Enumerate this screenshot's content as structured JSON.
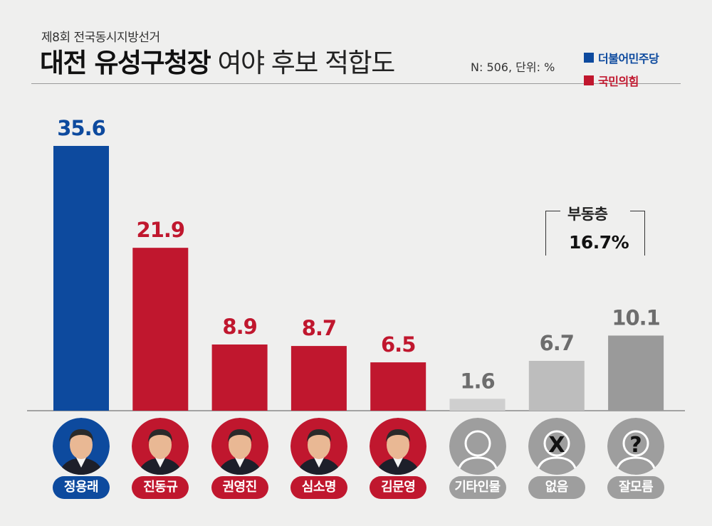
{
  "header": {
    "sup": "제8회 전국동시지방선거",
    "title_bold": "대전 유성구청장",
    "title_light": "여야 후보 적합도",
    "note": "N: 506, 단위: %"
  },
  "legend": [
    {
      "label": "더불어민주당",
      "color": "#0d4a9e"
    },
    {
      "label": "국민의힘",
      "color": "#c0172e"
    }
  ],
  "undecided": {
    "label": "부동층",
    "value": "16.7%"
  },
  "chart_data": {
    "type": "bar",
    "categories": [
      "정용래",
      "진동규",
      "권영진",
      "심소명",
      "김문영",
      "기타인물",
      "없음",
      "잘모름"
    ],
    "values": [
      35.6,
      21.9,
      8.9,
      8.7,
      6.5,
      1.6,
      6.7,
      10.1
    ],
    "value_labels": [
      "35.6",
      "21.9",
      "8.9",
      "8.7",
      "6.5",
      "1.6",
      "6.7",
      "10.1"
    ],
    "colors": [
      "#0d4a9e",
      "#c0172e",
      "#c0172e",
      "#c0172e",
      "#c0172e",
      "#cfcfcf",
      "#bdbdbd",
      "#9a9a9a"
    ],
    "label_colors": [
      "#0d4a9e",
      "#c0172e",
      "#c0172e",
      "#c0172e",
      "#c0172e",
      "#6d6d6d",
      "#6d6d6d",
      "#6d6d6d"
    ],
    "avatar_types": [
      "photo",
      "photo",
      "photo",
      "photo",
      "photo",
      "person-icon",
      "x-icon",
      "question-icon"
    ],
    "avatar_marks": [
      "",
      "",
      "",
      "",
      "",
      "",
      "X",
      "?"
    ],
    "pill_colors": [
      "#0d4a9e",
      "#c0172e",
      "#c0172e",
      "#c0172e",
      "#c0172e",
      "#9e9e9e",
      "#9e9e9e",
      "#9e9e9e"
    ],
    "ylim": [
      0,
      35.6
    ],
    "grid": false
  }
}
